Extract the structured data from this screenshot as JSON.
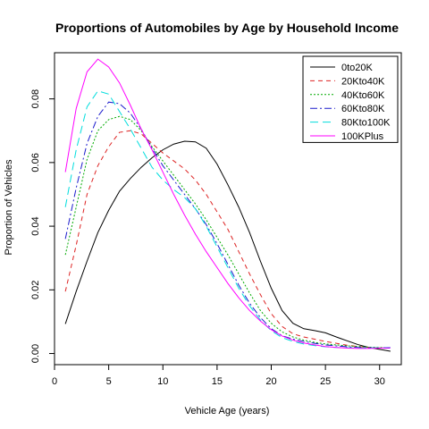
{
  "chart_data": {
    "type": "line",
    "title": "Proportions of Automobiles by Age by Household Income",
    "xlabel": "Vehicle Age (years)",
    "ylabel": "Proportion of Vehicles",
    "xlim": [
      0,
      32
    ],
    "ylim": [
      -0.0035,
      0.0945
    ],
    "xticks": [
      0,
      5,
      10,
      15,
      20,
      25,
      30
    ],
    "yticks": [
      0.0,
      0.02,
      0.04,
      0.06,
      0.08
    ],
    "ytick_labels": [
      "0.00",
      "0.02",
      "0.04",
      "0.06",
      "0.08"
    ],
    "grid": false,
    "legend_position": "top-right",
    "x": [
      1,
      2,
      3,
      4,
      5,
      6,
      7,
      8,
      9,
      10,
      11,
      12,
      13,
      14,
      15,
      16,
      17,
      18,
      19,
      20,
      21,
      22,
      23,
      24,
      25,
      26,
      27,
      28,
      29,
      30,
      31
    ],
    "series": [
      {
        "name": "0to20K",
        "color": "#000000",
        "dash": "solid",
        "values": [
          0.0093,
          0.0195,
          0.029,
          0.038,
          0.045,
          0.051,
          0.055,
          0.0585,
          0.0615,
          0.064,
          0.0658,
          0.0667,
          0.0665,
          0.0645,
          0.0595,
          0.053,
          0.046,
          0.038,
          0.029,
          0.0205,
          0.0135,
          0.0095,
          0.0078,
          0.0072,
          0.0065,
          0.0052,
          0.004,
          0.0028,
          0.0019,
          0.0013,
          0.0007
        ]
      },
      {
        "name": "20Kto40K",
        "color": "#dd2222",
        "dash": "5,4",
        "values": [
          0.0195,
          0.034,
          0.05,
          0.059,
          0.065,
          0.0695,
          0.07,
          0.069,
          0.066,
          0.063,
          0.0605,
          0.058,
          0.0545,
          0.05,
          0.0445,
          0.039,
          0.032,
          0.025,
          0.0185,
          0.0125,
          0.0085,
          0.0062,
          0.0052,
          0.0045,
          0.0038,
          0.0032,
          0.0026,
          0.0022,
          0.0019,
          0.0018,
          0.0017
        ]
      },
      {
        "name": "40Kto60K",
        "color": "#00aa00",
        "dash": "2,2",
        "values": [
          0.031,
          0.046,
          0.061,
          0.07,
          0.0735,
          0.0745,
          0.0735,
          0.07,
          0.065,
          0.0605,
          0.056,
          0.0515,
          0.047,
          0.042,
          0.0365,
          0.031,
          0.025,
          0.019,
          0.0135,
          0.0095,
          0.0068,
          0.0052,
          0.0042,
          0.0035,
          0.003,
          0.0027,
          0.0024,
          0.0022,
          0.002,
          0.0019,
          0.0018
        ]
      },
      {
        "name": "60Kto80K",
        "color": "#1a1acc",
        "dash": "8,3,2,3",
        "values": [
          0.036,
          0.052,
          0.066,
          0.0745,
          0.079,
          0.0785,
          0.0755,
          0.0705,
          0.0645,
          0.059,
          0.0545,
          0.05,
          0.0455,
          0.0405,
          0.0345,
          0.028,
          0.0215,
          0.0158,
          0.0113,
          0.0078,
          0.0056,
          0.0045,
          0.0038,
          0.0032,
          0.0027,
          0.0024,
          0.0021,
          0.0019,
          0.0018,
          0.0017,
          0.0017
        ]
      },
      {
        "name": "80Kto100K",
        "color": "#00dddd",
        "dash": "9,5",
        "values": [
          0.046,
          0.064,
          0.0775,
          0.0825,
          0.0815,
          0.076,
          0.0705,
          0.0645,
          0.0585,
          0.0545,
          0.0515,
          0.049,
          0.0455,
          0.04,
          0.0335,
          0.027,
          0.0205,
          0.015,
          0.0105,
          0.0072,
          0.005,
          0.0038,
          0.003,
          0.0025,
          0.0021,
          0.0019,
          0.0018,
          0.0017,
          0.0017,
          0.0018,
          0.0019
        ]
      },
      {
        "name": "100KPlus",
        "color": "#ff00ff",
        "dash": "solid",
        "values": [
          0.057,
          0.077,
          0.0885,
          0.0925,
          0.09,
          0.085,
          0.078,
          0.0705,
          0.064,
          0.057,
          0.05,
          0.0435,
          0.0375,
          0.032,
          0.027,
          0.022,
          0.0175,
          0.0135,
          0.0102,
          0.0075,
          0.0055,
          0.0042,
          0.0033,
          0.0027,
          0.0022,
          0.0019,
          0.0017,
          0.0016,
          0.0016,
          0.0017,
          0.0018
        ]
      }
    ]
  }
}
